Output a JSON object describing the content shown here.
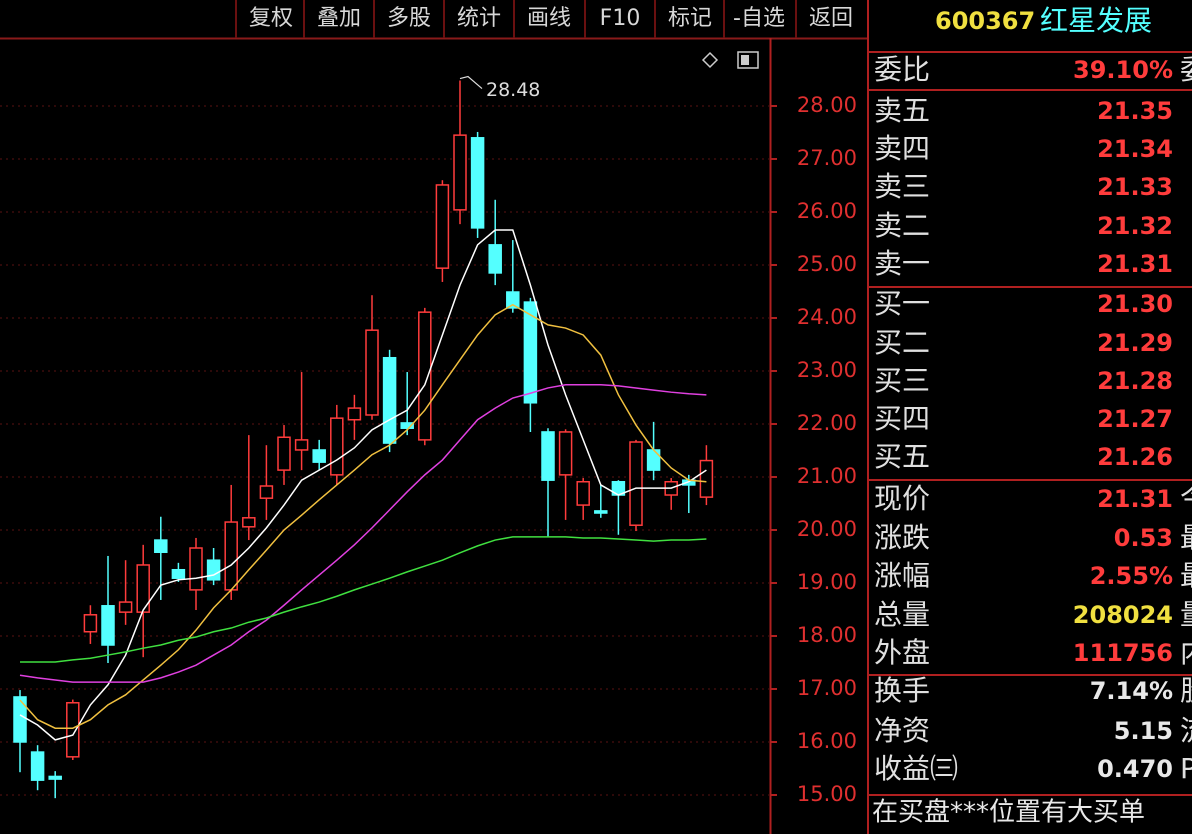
{
  "toolbar": [
    "复权",
    "叠加",
    "多股",
    "统计",
    "画线",
    "F10",
    "标记",
    "-自选",
    "返回"
  ],
  "stock": {
    "code": "600367",
    "name": "红星发展"
  },
  "quote_rows": [
    {
      "label": "委比",
      "value": {
        "value": 39.1,
        "label": "39.10%"
      },
      "color": "#ff3c3c",
      "tail": "委"
    },
    {
      "label": "卖五",
      "value": 21.35,
      "color": "#ff3c3c"
    },
    {
      "label": "卖四",
      "value": 21.34,
      "color": "#ff3c3c"
    },
    {
      "label": "卖三",
      "value": 21.33,
      "color": "#ff3c3c"
    },
    {
      "label": "卖二",
      "value": 21.32,
      "color": "#ff3c3c"
    },
    {
      "label": "卖一",
      "value": 21.31,
      "color": "#ff3c3c"
    },
    {
      "label": "买一",
      "value": {
        "value": 21.3,
        "label": "21.30"
      },
      "color": "#ff3c3c"
    },
    {
      "label": "买二",
      "value": 21.29,
      "color": "#ff3c3c"
    },
    {
      "label": "买三",
      "value": 21.28,
      "color": "#ff3c3c"
    },
    {
      "label": "买四",
      "value": 21.27,
      "color": "#ff3c3c"
    },
    {
      "label": "买五",
      "value": 21.26,
      "color": "#ff3c3c"
    },
    {
      "label": "现价",
      "value": 21.31,
      "color": "#ff3c3c",
      "tail": "今"
    },
    {
      "label": "涨跌",
      "value": 0.53,
      "color": "#ff3c3c",
      "tail": "最"
    },
    {
      "label": "涨幅",
      "value": {
        "value": 2.55,
        "label": "2.55%"
      },
      "color": "#ff3c3c",
      "tail": "最"
    },
    {
      "label": "总量",
      "value": 208024,
      "color": "#f0e040",
      "tail": "量"
    },
    {
      "label": "外盘",
      "value": 111756,
      "color": "#ff3c3c",
      "tail": "内"
    },
    {
      "label": "换手",
      "value": {
        "value": 7.14,
        "label": "7.14%"
      },
      "color": "#e8e8e8",
      "tail": "股"
    },
    {
      "label": "净资",
      "value": 5.15,
      "color": "#e8e8e8",
      "tail": "流"
    },
    {
      "label": "收益㈢",
      "value": {
        "value": 0.47,
        "label": "0.470"
      },
      "color": "#e8e8e8",
      "tail": "P"
    }
  ],
  "footer": "在买盘***位置有大买单",
  "chart_data": {
    "type": "candlestick",
    "open": [
      16.85,
      15.81,
      15.35,
      15.72,
      18.08,
      18.57,
      18.45,
      18.45,
      19.81,
      19.25,
      18.87,
      19.43,
      18.87,
      20.06,
      20.6,
      21.13,
      21.51,
      21.51,
      21.04,
      22.08,
      22.17,
      23.25,
      22.02,
      21.7,
      24.94,
      26.04,
      27.4,
      25.38,
      24.49,
      24.3,
      21.85,
      21.04,
      20.47,
      20.36,
      20.91,
      20.09,
      21.51,
      20.66,
      20.94,
      20.62
    ],
    "high": [
      16.98,
      15.94,
      15.45,
      16.8,
      18.58,
      19.51,
      19.43,
      19.72,
      20.25,
      19.38,
      19.85,
      19.66,
      20.85,
      21.79,
      21.6,
      21.98,
      22.98,
      21.7,
      22.36,
      22.55,
      24.43,
      23.4,
      22.98,
      24.19,
      26.6,
      28.48,
      27.51,
      26.23,
      25.47,
      24.38,
      21.92,
      21.9,
      20.98,
      20.85,
      20.94,
      21.7,
      22.04,
      20.98,
      21.04,
      21.6
    ],
    "low": [
      15.43,
      15.09,
      14.94,
      15.66,
      17.85,
      17.49,
      18.21,
      17.6,
      18.68,
      19.02,
      18.49,
      18.96,
      18.68,
      19.81,
      20.19,
      20.85,
      21.13,
      21.13,
      20.85,
      21.7,
      22.08,
      21.47,
      21.79,
      21.6,
      24.68,
      25.77,
      25.51,
      24.62,
      24.1,
      21.85,
      19.87,
      20.19,
      20.19,
      20.23,
      19.91,
      19.98,
      20.94,
      20.38,
      20.32,
      20.47
    ],
    "close": [
      16.0,
      15.28,
      15.3,
      16.74,
      18.4,
      17.83,
      18.64,
      19.34,
      19.58,
      19.09,
      19.66,
      19.06,
      20.15,
      20.23,
      20.83,
      21.75,
      21.7,
      21.28,
      22.11,
      22.3,
      23.77,
      21.64,
      21.92,
      24.11,
      26.51,
      27.45,
      25.7,
      24.85,
      24.19,
      22.4,
      20.94,
      21.85,
      20.91,
      20.32,
      20.66,
      21.66,
      21.13,
      20.91,
      20.85,
      21.31
    ],
    "up_color": "#ff3c3c",
    "down_color": "#54ffff",
    "ma_lines": [
      {
        "color": "#ffffff",
        "values": [
          16.51,
          16.32,
          16.04,
          16.13,
          16.7,
          17.08,
          17.64,
          18.49,
          18.96,
          19.06,
          19.09,
          19.15,
          19.34,
          19.66,
          20.04,
          20.47,
          20.94,
          21.13,
          21.32,
          21.55,
          21.89,
          22.08,
          22.26,
          22.74,
          23.68,
          24.62,
          25.38,
          25.66,
          25.66,
          24.62,
          23.49,
          22.55,
          21.7,
          20.85,
          20.66,
          20.79,
          20.79,
          20.79,
          20.91,
          21.13
        ]
      },
      {
        "color": "#f0c040",
        "values": [
          16.79,
          16.42,
          16.26,
          16.26,
          16.42,
          16.7,
          16.89,
          17.17,
          17.45,
          17.74,
          18.11,
          18.53,
          18.87,
          19.25,
          19.62,
          20.0,
          20.28,
          20.57,
          20.85,
          21.13,
          21.42,
          21.6,
          21.89,
          22.26,
          22.74,
          23.21,
          23.68,
          24.06,
          24.25,
          24.06,
          23.87,
          23.81,
          23.68,
          23.3,
          22.55,
          21.98,
          21.51,
          21.17,
          20.94,
          20.91
        ]
      },
      {
        "color": "#e040e0",
        "values": [
          17.26,
          17.21,
          17.17,
          17.13,
          17.13,
          17.13,
          17.13,
          17.13,
          17.21,
          17.32,
          17.45,
          17.64,
          17.83,
          18.08,
          18.3,
          18.58,
          18.87,
          19.15,
          19.43,
          19.72,
          20.04,
          20.38,
          20.72,
          21.04,
          21.32,
          21.7,
          22.08,
          22.3,
          22.49,
          22.58,
          22.68,
          22.74,
          22.74,
          22.74,
          22.72,
          22.68,
          22.64,
          22.6,
          22.57,
          22.55
        ]
      },
      {
        "color": "#40e040",
        "values": [
          17.51,
          17.51,
          17.51,
          17.55,
          17.58,
          17.64,
          17.7,
          17.77,
          17.83,
          17.92,
          17.98,
          18.08,
          18.15,
          18.26,
          18.34,
          18.45,
          18.55,
          18.64,
          18.75,
          18.87,
          18.98,
          19.09,
          19.21,
          19.32,
          19.43,
          19.57,
          19.7,
          19.81,
          19.87,
          19.87,
          19.87,
          19.87,
          19.85,
          19.85,
          19.83,
          19.81,
          19.79,
          19.81,
          19.81,
          19.83
        ]
      }
    ],
    "annotation": "28.48",
    "ylim": [
      14.264,
      29.245
    ],
    "yticks": [
      {
        "value": 15,
        "label": "15.00"
      },
      {
        "value": 16,
        "label": "16.00"
      },
      {
        "value": 17,
        "label": "17.00"
      },
      {
        "value": 18,
        "label": "18.00"
      },
      {
        "value": 19,
        "label": "19.00"
      },
      {
        "value": 20,
        "label": "20.00"
      },
      {
        "value": 21,
        "label": "21.00"
      },
      {
        "value": 22,
        "label": "22.00"
      },
      {
        "value": 23,
        "label": "23.00"
      },
      {
        "value": 24,
        "label": "24.00"
      },
      {
        "value": 25,
        "label": "25.00"
      },
      {
        "value": 26,
        "label": "26.00"
      },
      {
        "value": 27,
        "label": "27.00"
      },
      {
        "value": 28,
        "label": "28.00"
      }
    ],
    "grid": true
  }
}
